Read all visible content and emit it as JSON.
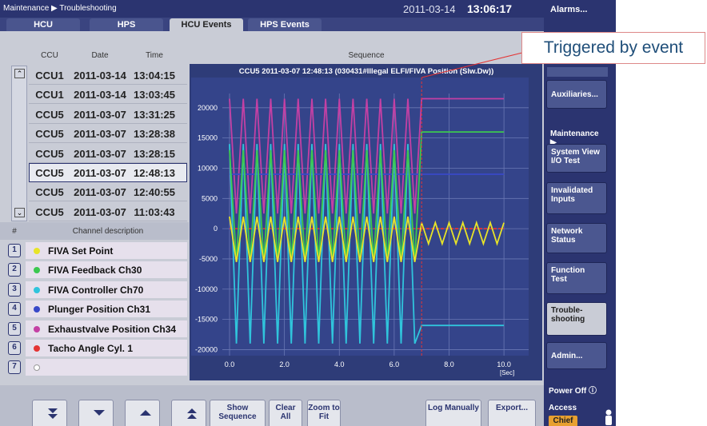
{
  "header": {
    "breadcrumb": "Maintenance ▶ Troubleshooting",
    "date": "2011-03-14",
    "time": "13:06:17"
  },
  "tabs": [
    "HCU",
    "HPS",
    "HCU Events",
    "HPS Events"
  ],
  "events": {
    "columns": [
      "CCU",
      "Date",
      "Time"
    ],
    "rows": [
      [
        "CCU1",
        "2011-03-14",
        "13:04:15"
      ],
      [
        "CCU1",
        "2011-03-14",
        "13:03:45"
      ],
      [
        "CCU5",
        "2011-03-07",
        "13:31:25"
      ],
      [
        "CCU5",
        "2011-03-07",
        "13:28:38"
      ],
      [
        "CCU5",
        "2011-03-07",
        "13:28:15"
      ],
      [
        "CCU5",
        "2011-03-07",
        "12:48:13"
      ],
      [
        "CCU5",
        "2011-03-07",
        "12:40:55"
      ],
      [
        "CCU5",
        "2011-03-07",
        "11:03:43"
      ]
    ]
  },
  "channels": {
    "header": [
      "#",
      "Channel description"
    ],
    "numbers": [
      1,
      2,
      3,
      4,
      5,
      6,
      7
    ]
  },
  "sequence_header": "Sequence",
  "chart_data": {
    "type": "line",
    "title": "CCU5 2011-03-07 12:48:13 (030431#Illegal ELFI/FIVA Position (Slw.Dw))",
    "x_label": "[Sec]",
    "x": [
      0,
      0.25,
      0.5,
      0.75,
      1,
      1.25,
      1.5,
      1.75,
      2,
      2.25,
      2.5,
      2.75,
      3,
      3.25,
      3.5,
      3.75,
      4,
      4.25,
      4.5,
      4.75,
      5,
      5.25,
      5.5,
      5.75,
      6,
      6.25,
      6.5,
      6.75,
      7,
      7.25,
      7.5,
      7.75,
      8,
      8.25,
      8.5,
      8.75,
      9,
      9.25,
      9.5,
      9.75,
      10
    ],
    "xlim": [
      -1.4,
      10.9
    ],
    "ylim": [
      -21000,
      25000
    ],
    "xticks": [
      {
        "value": 0,
        "label": "0.0"
      },
      {
        "value": 2,
        "label": "2.0"
      },
      {
        "value": 4,
        "label": "4.0"
      },
      {
        "value": 6,
        "label": "6.0"
      },
      {
        "value": 8,
        "label": "8.0"
      },
      {
        "value": 10,
        "label": "10.0"
      }
    ],
    "yticks": [
      20000,
      15000,
      10000,
      5000,
      0,
      -5000,
      -10000,
      -15000,
      -20000
    ],
    "grid": true,
    "event_marker_x": 7,
    "series": [
      {
        "name": "FIVA Set Point",
        "color": "#e8e428",
        "values": [
          2000,
          -5500,
          2000,
          -5500,
          2000,
          -5500,
          2000,
          -5500,
          2000,
          -5500,
          2000,
          -5500,
          2000,
          -5500,
          2000,
          -5500,
          2000,
          -5500,
          2000,
          -5500,
          2000,
          -5500,
          2000,
          -5500,
          2000,
          -5500,
          2000,
          -5500,
          1000,
          -2500,
          1000,
          -2500,
          1000,
          -2500,
          1000,
          -2500,
          1000,
          -2500,
          1000,
          -2500,
          1000
        ]
      },
      {
        "name": "FIVA Feedback Ch30",
        "color": "#3cc850",
        "values": [
          13000,
          -5500,
          13000,
          -5500,
          13000,
          -5500,
          13000,
          -5500,
          13000,
          -5500,
          13000,
          -5500,
          13000,
          -5500,
          13000,
          -5500,
          13000,
          -5500,
          13000,
          -5500,
          13000,
          -5500,
          13000,
          -5500,
          13000,
          -5500,
          13000,
          -5500,
          16000,
          16000,
          16000,
          16000,
          16000,
          16000,
          16000,
          16000,
          16000,
          16000,
          16000,
          16000,
          16000
        ]
      },
      {
        "name": "FIVA Controller Ch70",
        "color": "#30c4dc",
        "values": [
          14000,
          -19000,
          14000,
          -19000,
          14000,
          -19000,
          14000,
          -19000,
          14000,
          -19000,
          14000,
          -19000,
          14000,
          -19000,
          14000,
          -19000,
          14000,
          -19000,
          14000,
          -19000,
          14000,
          -19000,
          14000,
          -19000,
          14000,
          -19000,
          14000,
          -19000,
          -16000,
          -16000,
          -16000,
          -16000,
          -16000,
          -16000,
          -16000,
          -16000,
          -16000,
          -16000,
          -16000,
          -16000,
          -16000
        ]
      },
      {
        "name": "Plunger Position Ch31",
        "color": "#3848c8",
        "values": [
          9000,
          9000,
          9000,
          9000,
          9000,
          9000,
          9000,
          9000,
          9000,
          9000,
          9000,
          9000,
          9000,
          9000,
          9000,
          9000,
          9000,
          9000,
          9000,
          9000,
          9000,
          9000,
          9000,
          9000,
          9000,
          9000,
          9000,
          9000,
          9000,
          9000,
          9000,
          9000,
          9000,
          9000,
          9000,
          9000,
          9000,
          9000,
          9000,
          9000,
          9000
        ]
      },
      {
        "name": "Exhaustvalve Position Ch34",
        "color": "#c440a4",
        "values": [
          21500,
          2500,
          21500,
          2500,
          21500,
          2500,
          21500,
          2500,
          21500,
          2500,
          21500,
          2500,
          21500,
          2500,
          21500,
          2500,
          21500,
          2500,
          21500,
          2500,
          21500,
          2500,
          21500,
          2500,
          21500,
          2500,
          21500,
          2500,
          21500,
          21500,
          21500,
          21500,
          21500,
          21500,
          21500,
          21500,
          21500,
          21500,
          21500,
          21500,
          21500
        ]
      },
      {
        "name": "Tacho Angle Cyl. 1",
        "color": "#e43434",
        "values": [
          0,
          0,
          0,
          0,
          0,
          0,
          0,
          0,
          0,
          0,
          0,
          0,
          0,
          0,
          0,
          0,
          0,
          0,
          0,
          0,
          0,
          0,
          0,
          0,
          0,
          0,
          0,
          0,
          0,
          0,
          0,
          0,
          0,
          0,
          0,
          0,
          0,
          0,
          0,
          0,
          0
        ]
      }
    ]
  },
  "sidebar": {
    "alarms": "Alarms...",
    "auxiliaries": "Auxiliaries...",
    "section": "Maintenance ▶",
    "buttons": [
      "System View I/O Test",
      "Invalidated Inputs",
      "Network Status",
      "Function Test",
      "Trouble-shooting"
    ],
    "admin": "Admin...",
    "power": "Power Off ⓘ",
    "access": "Access",
    "role": "Chief"
  },
  "bottom_buttons": [
    "Show Sequence",
    "Clear All",
    "Zoom to Fit",
    "Log Manually",
    "Export..."
  ],
  "callout": "Triggered by event"
}
